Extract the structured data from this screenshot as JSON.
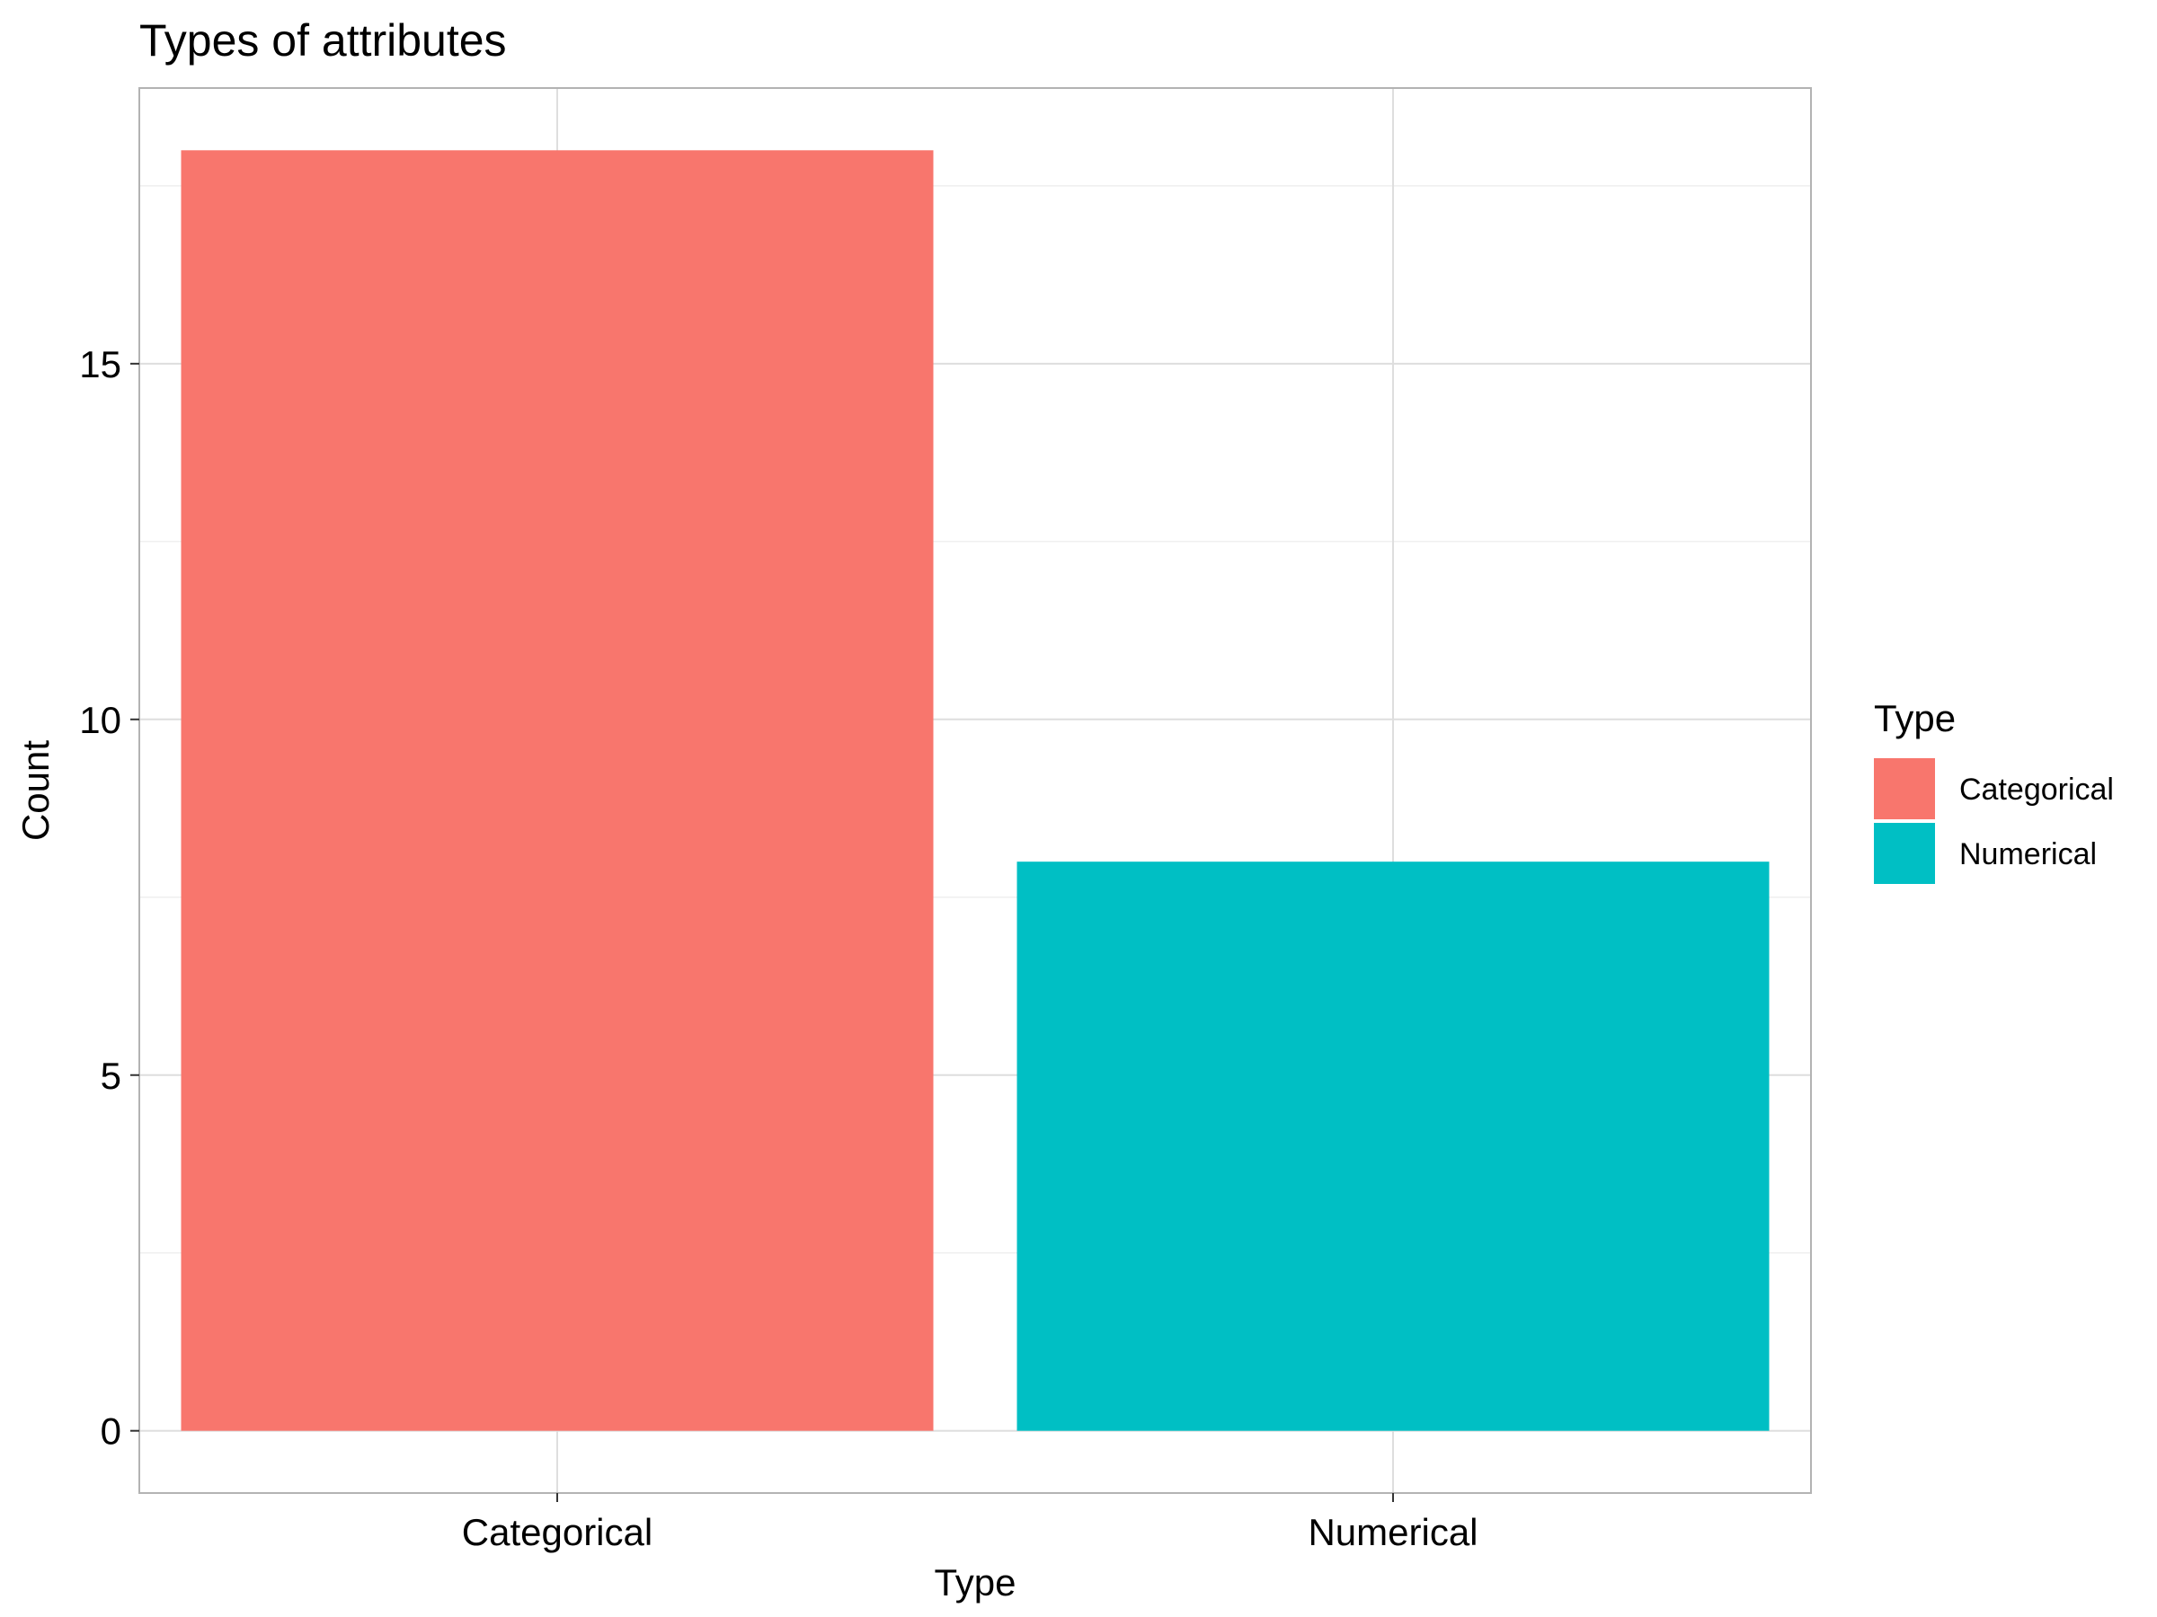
{
  "chart_data": {
    "type": "bar",
    "title": "Types of attributes",
    "xlabel": "Type",
    "ylabel": "Count",
    "categories": [
      "Categorical",
      "Numerical"
    ],
    "values": [
      18,
      8
    ],
    "colors": [
      "#F8766D",
      "#00BFC4"
    ],
    "ylim": [
      -0.875,
      18.875
    ],
    "yticks": [
      0,
      5,
      10,
      15
    ],
    "yticks_labels": [
      "0",
      "5",
      "10",
      "15"
    ],
    "grid": true,
    "legend": {
      "title": "Type",
      "position": "right",
      "items": [
        {
          "label": "Categorical",
          "color": "#F8766D"
        },
        {
          "label": "Numerical",
          "color": "#00BFC4"
        }
      ]
    }
  }
}
